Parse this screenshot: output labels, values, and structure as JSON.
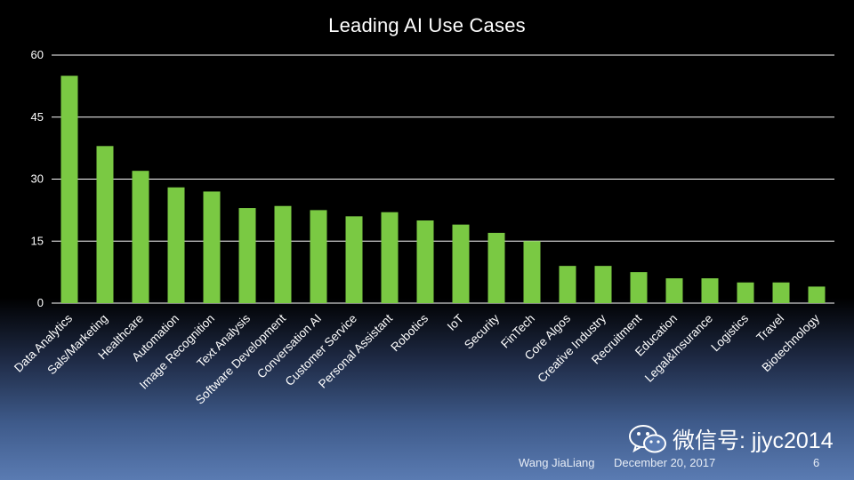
{
  "slide": {
    "title": "Leading AI Use Cases",
    "author": "Wang JiaLiang",
    "date": "December 20, 2017",
    "page": "6",
    "watermark": "微信号: jjyc2014"
  },
  "colors": {
    "bar": "#7ac943",
    "grid": "#ffffff",
    "background": "#000000"
  },
  "icons": {
    "watermark": "wechat-icon"
  },
  "chart_data": {
    "type": "bar",
    "title": "Leading AI Use Cases",
    "xlabel": "",
    "ylabel": "",
    "ylim": [
      0,
      60
    ],
    "yticks": [
      0,
      15,
      30,
      45,
      60
    ],
    "grid": true,
    "legend": "none",
    "categories": [
      "Data Analytics",
      "Sals/Marketing",
      "Healthcare",
      "Automation",
      "Image Recognition",
      "Text Analysis",
      "Software Development",
      "Conversation AI",
      "Customer Service",
      "Personal Assistant",
      "Robotics",
      "IoT",
      "Security",
      "FinTech",
      "Core Algos",
      "Creative Industry",
      "Recruitment",
      "Education",
      "Legal&Insurance",
      "Logistics",
      "Travel",
      "Biotechnology"
    ],
    "values": [
      55,
      38,
      32,
      28,
      27,
      23,
      23.5,
      22.5,
      21,
      22,
      20,
      19,
      17,
      15,
      9,
      9,
      7.5,
      6,
      6,
      5,
      5,
      4
    ]
  }
}
